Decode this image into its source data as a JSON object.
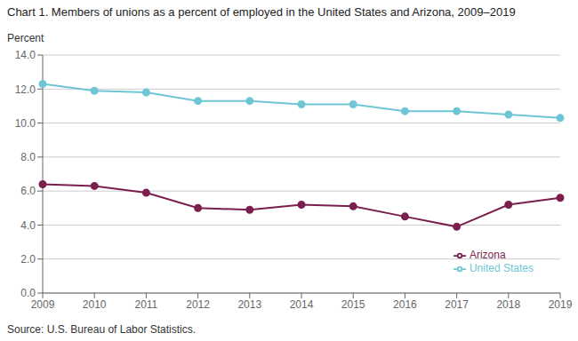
{
  "chart_data": {
    "type": "line",
    "title": "Chart 1. Members of unions as a percent of employed in the United States and Arizona, 2009–2019",
    "ylabel": "Percent",
    "annotations": [
      "Source: U.S. Bureau of Labor Statistics."
    ],
    "categories": [
      "2009",
      "2010",
      "2011",
      "2012",
      "2013",
      "2014",
      "2015",
      "2016",
      "2017",
      "2018",
      "2019"
    ],
    "series": [
      {
        "name": "United States",
        "color": "#6EC6D5",
        "marker": "circle",
        "values": [
          12.3,
          11.9,
          11.8,
          11.3,
          11.3,
          11.1,
          11.1,
          10.7,
          10.7,
          10.5,
          10.3
        ]
      },
      {
        "name": "Arizona",
        "color": "#7B1F4E",
        "marker": "circle",
        "values": [
          6.4,
          6.3,
          5.9,
          5.0,
          4.9,
          5.2,
          5.1,
          4.5,
          3.9,
          5.2,
          5.6
        ]
      }
    ],
    "ylim": [
      0,
      14.0
    ],
    "yticks": [
      {
        "value": 0,
        "label": "0.0"
      },
      {
        "value": 2,
        "label": "2.0"
      },
      {
        "value": 4,
        "label": "4.0"
      },
      {
        "value": 6,
        "label": "6.0"
      },
      {
        "value": 8,
        "label": "8.0"
      },
      {
        "value": 10,
        "label": "10.0"
      },
      {
        "value": 12,
        "label": "12.0"
      },
      {
        "value": 14,
        "label": "14.0"
      }
    ],
    "grid": true,
    "legend": "lower right"
  }
}
